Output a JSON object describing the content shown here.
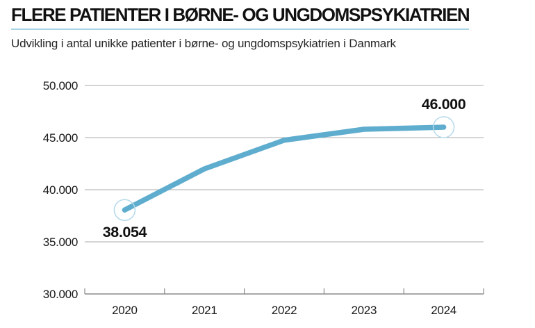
{
  "header": {
    "title": "FLERE PATIENTER I BØRNE- OG UNGDOMSPSYKIATRIEN",
    "subtitle": "Udvikling i antal unikke patienter i børne- og ungdomspsykiatrien i Danmark",
    "underline_color": "#a9d4e6"
  },
  "chart_data": {
    "type": "line",
    "title": "FLERE PATIENTER I BØRNE- OG UNGDOMSPSYKIATRIEN",
    "subtitle": "Udvikling i antal unikke patienter i børne- og ungdomspsykiatrien i Danmark",
    "categories": [
      "2020",
      "2021",
      "2022",
      "2023",
      "2024"
    ],
    "series": [
      {
        "name": "Unikke patienter",
        "values": [
          38054,
          42000,
          44750,
          45800,
          46000
        ]
      }
    ],
    "point_labels": [
      {
        "index": 0,
        "text": "38.054",
        "position": "below",
        "ring": true
      },
      {
        "index": 4,
        "text": "46.000",
        "position": "above",
        "ring": true
      }
    ],
    "yticks": [
      {
        "value": 30000,
        "label": "30.000"
      },
      {
        "value": 35000,
        "label": "35.000"
      },
      {
        "value": 40000,
        "label": "40.000"
      },
      {
        "value": 45000,
        "label": "45.000"
      },
      {
        "value": 50000,
        "label": "50.000"
      }
    ],
    "ylim": [
      30000,
      50000
    ],
    "xlabel": "",
    "ylabel": "",
    "grid": true,
    "legend_position": "none",
    "colors": {
      "line": "#5fadce",
      "marker_ring": "#b4d9ea",
      "grid": "#ababab",
      "axis": "#8a8a8a",
      "text": "#1a1a1a"
    }
  }
}
